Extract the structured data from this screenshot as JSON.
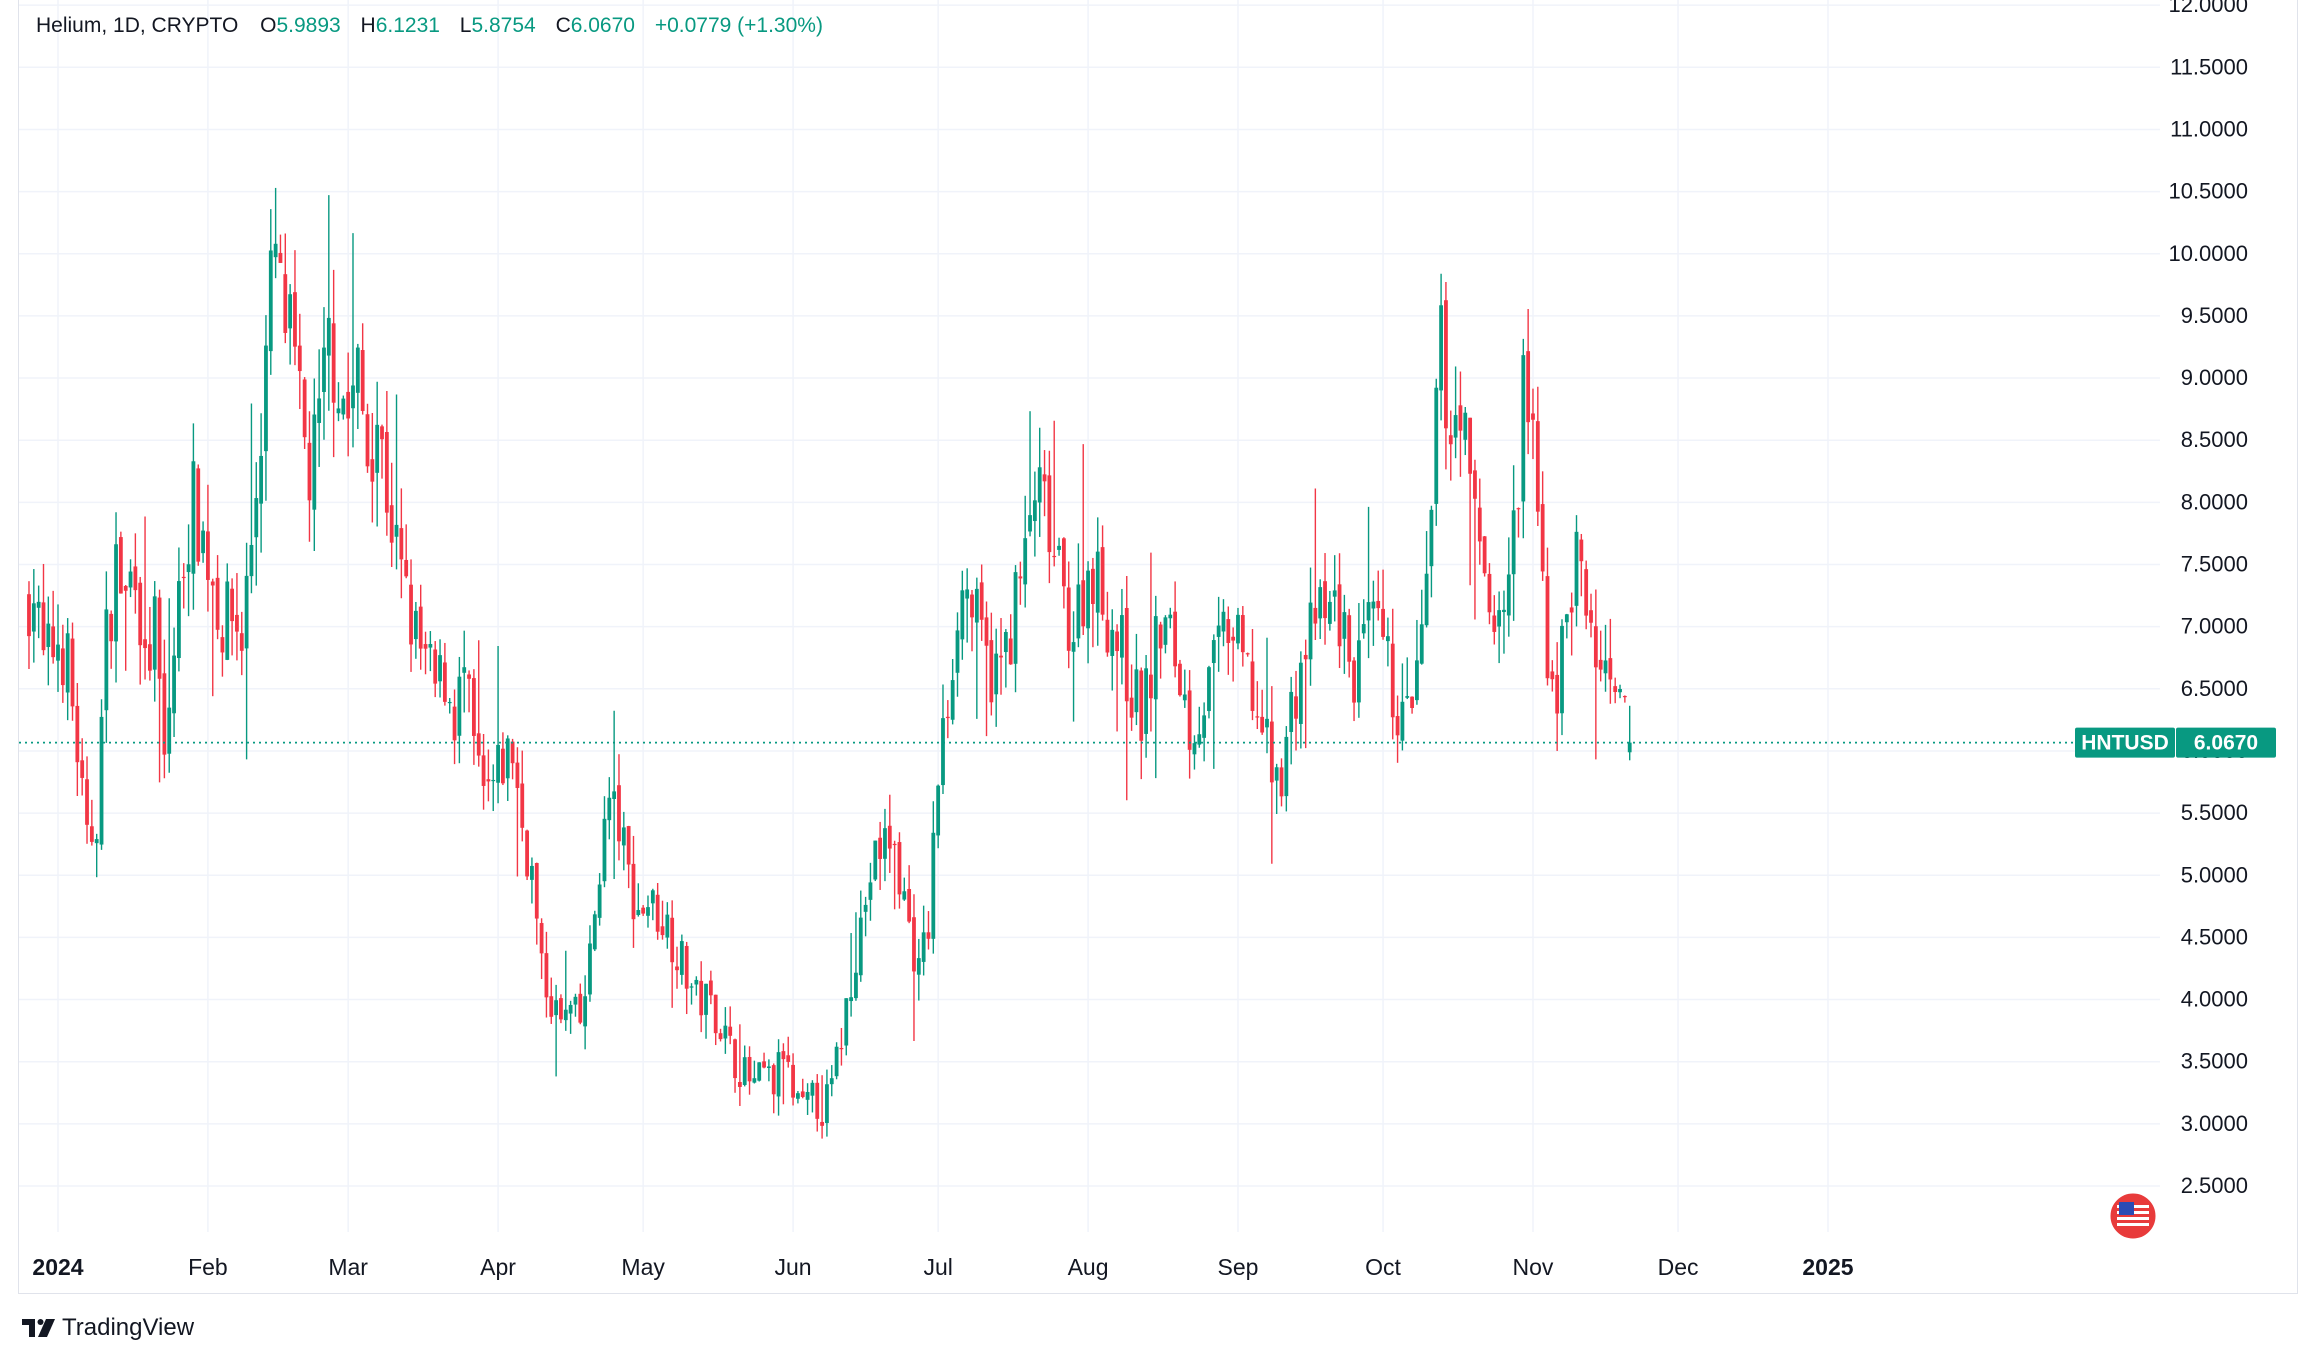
{
  "legend": {
    "symbol": "Helium, 1D, CRYPTO",
    "o_label": "O",
    "o_value": "5.9893",
    "h_label": "H",
    "h_value": "6.1231",
    "l_label": "L",
    "l_value": "5.8754",
    "c_label": "C",
    "c_value": "6.0670",
    "change": "+0.0779 (+1.30%)"
  },
  "branding": {
    "logo_text": "TradingView"
  },
  "colors": {
    "up": "#089981",
    "down": "#f23645",
    "grid": "#f0f3fa",
    "axis_text": "#131722"
  },
  "chart_data": {
    "type": "candlestick",
    "ticker": "HNTUSD",
    "last_price": 6.067,
    "last_price_label": "6.0670",
    "ylim": [
      2.2,
      12.0
    ],
    "y_ticks": [
      2.5,
      3.0,
      3.5,
      4.0,
      4.5,
      5.0,
      5.5,
      6.0,
      6.5,
      7.0,
      7.5,
      8.0,
      8.5,
      9.0,
      9.5,
      10.0,
      10.5,
      11.0,
      11.5,
      12.0
    ],
    "y_tick_labels": [
      "2.5000",
      "3.0000",
      "3.5000",
      "4.0000",
      "4.5000",
      "5.0000",
      "5.5000",
      "6.0000",
      "6.5000",
      "7.0000",
      "7.5000",
      "8.0000",
      "8.5000",
      "9.0000",
      "9.5000",
      "10.0000",
      "10.5000",
      "11.0000",
      "11.5000",
      "12.0000"
    ],
    "x_ticks": [
      {
        "day": 0,
        "label": "2024",
        "bold": true
      },
      {
        "day": 31,
        "label": "Feb",
        "bold": false
      },
      {
        "day": 60,
        "label": "Mar",
        "bold": false
      },
      {
        "day": 91,
        "label": "Apr",
        "bold": false
      },
      {
        "day": 121,
        "label": "May",
        "bold": false
      },
      {
        "day": 152,
        "label": "Jun",
        "bold": false
      },
      {
        "day": 182,
        "label": "Jul",
        "bold": false
      },
      {
        "day": 213,
        "label": "Aug",
        "bold": false
      },
      {
        "day": 244,
        "label": "Sep",
        "bold": false
      },
      {
        "day": 274,
        "label": "Oct",
        "bold": false
      },
      {
        "day": 305,
        "label": "Nov",
        "bold": false
      },
      {
        "day": 335,
        "label": "Dec",
        "bold": false
      },
      {
        "day": 366,
        "label": "2025",
        "bold": true
      }
    ],
    "close_path": [
      [
        -7,
        7.2
      ],
      [
        -5,
        7.3
      ],
      [
        -3,
        6.7
      ],
      [
        0,
        6.9
      ],
      [
        2,
        6.7
      ],
      [
        4,
        6.0
      ],
      [
        6,
        5.2
      ],
      [
        8,
        5.5
      ],
      [
        10,
        6.9
      ],
      [
        12,
        7.5
      ],
      [
        14,
        7.2
      ],
      [
        16,
        7.6
      ],
      [
        18,
        6.6
      ],
      [
        20,
        7.0
      ],
      [
        22,
        5.9
      ],
      [
        24,
        6.8
      ],
      [
        26,
        7.6
      ],
      [
        28,
        8.0
      ],
      [
        30,
        7.7
      ],
      [
        32,
        7.4
      ],
      [
        34,
        7.0
      ],
      [
        36,
        7.1
      ],
      [
        38,
        6.9
      ],
      [
        40,
        7.7
      ],
      [
        42,
        8.6
      ],
      [
        44,
        9.7
      ],
      [
        45,
        10.0
      ],
      [
        46,
        9.6
      ],
      [
        48,
        9.3
      ],
      [
        50,
        8.7
      ],
      [
        52,
        8.2
      ],
      [
        54,
        8.6
      ],
      [
        56,
        9.3
      ],
      [
        58,
        9.0
      ],
      [
        60,
        8.7
      ],
      [
        62,
        9.0
      ],
      [
        64,
        8.4
      ],
      [
        66,
        8.7
      ],
      [
        68,
        8.1
      ],
      [
        70,
        7.6
      ],
      [
        72,
        7.2
      ],
      [
        74,
        6.9
      ],
      [
        76,
        6.7
      ],
      [
        78,
        6.5
      ],
      [
        80,
        6.6
      ],
      [
        82,
        6.3
      ],
      [
        84,
        6.6
      ],
      [
        86,
        6.0
      ],
      [
        88,
        5.6
      ],
      [
        90,
        5.7
      ],
      [
        92,
        5.9
      ],
      [
        94,
        6.0
      ],
      [
        96,
        5.4
      ],
      [
        98,
        5.0
      ],
      [
        100,
        4.2
      ],
      [
        102,
        4.0
      ],
      [
        104,
        3.8
      ],
      [
        106,
        3.9
      ],
      [
        108,
        3.8
      ],
      [
        110,
        4.3
      ],
      [
        112,
        5.1
      ],
      [
        114,
        5.6
      ],
      [
        116,
        5.4
      ],
      [
        118,
        5.0
      ],
      [
        120,
        4.7
      ],
      [
        122,
        4.8
      ],
      [
        124,
        4.7
      ],
      [
        126,
        4.6
      ],
      [
        128,
        4.4
      ],
      [
        130,
        4.2
      ],
      [
        132,
        4.0
      ],
      [
        134,
        4.0
      ],
      [
        136,
        3.9
      ],
      [
        138,
        3.7
      ],
      [
        140,
        3.5
      ],
      [
        142,
        3.4
      ],
      [
        144,
        3.3
      ],
      [
        146,
        3.4
      ],
      [
        148,
        3.3
      ],
      [
        150,
        3.6
      ],
      [
        152,
        3.2
      ],
      [
        154,
        3.1
      ],
      [
        156,
        3.2
      ],
      [
        158,
        3.1
      ],
      [
        160,
        3.3
      ],
      [
        162,
        3.7
      ],
      [
        164,
        4.2
      ],
      [
        166,
        4.6
      ],
      [
        168,
        5.0
      ],
      [
        170,
        5.2
      ],
      [
        172,
        5.3
      ],
      [
        174,
        5.0
      ],
      [
        176,
        4.6
      ],
      [
        178,
        4.2
      ],
      [
        180,
        4.6
      ],
      [
        182,
        5.8
      ],
      [
        184,
        6.4
      ],
      [
        186,
        7.2
      ],
      [
        188,
        7.3
      ],
      [
        190,
        7.0
      ],
      [
        192,
        6.7
      ],
      [
        194,
        6.6
      ],
      [
        196,
        6.8
      ],
      [
        198,
        7.2
      ],
      [
        200,
        7.5
      ],
      [
        202,
        8.1
      ],
      [
        204,
        7.9
      ],
      [
        206,
        7.5
      ],
      [
        208,
        7.2
      ],
      [
        210,
        7.0
      ],
      [
        212,
        7.3
      ],
      [
        214,
        7.5
      ],
      [
        216,
        7.2
      ],
      [
        218,
        7.0
      ],
      [
        220,
        6.8
      ],
      [
        222,
        6.5
      ],
      [
        224,
        6.3
      ],
      [
        226,
        6.6
      ],
      [
        228,
        7.0
      ],
      [
        230,
        6.9
      ],
      [
        232,
        6.6
      ],
      [
        234,
        6.2
      ],
      [
        236,
        6.3
      ],
      [
        238,
        6.5
      ],
      [
        240,
        6.8
      ],
      [
        242,
        7.0
      ],
      [
        244,
        6.8
      ],
      [
        246,
        6.6
      ],
      [
        248,
        6.3
      ],
      [
        250,
        6.0
      ],
      [
        252,
        5.7
      ],
      [
        254,
        6.1
      ],
      [
        256,
        6.5
      ],
      [
        258,
        6.8
      ],
      [
        260,
        7.1
      ],
      [
        262,
        7.0
      ],
      [
        264,
        7.2
      ],
      [
        266,
        6.9
      ],
      [
        268,
        6.6
      ],
      [
        270,
        6.8
      ],
      [
        272,
        7.0
      ],
      [
        274,
        6.8
      ],
      [
        276,
        6.5
      ],
      [
        278,
        6.2
      ],
      [
        280,
        6.4
      ],
      [
        282,
        6.8
      ],
      [
        284,
        7.7
      ],
      [
        285,
        8.8
      ],
      [
        286,
        9.2
      ],
      [
        288,
        8.6
      ],
      [
        290,
        8.9
      ],
      [
        292,
        8.0
      ],
      [
        294,
        7.7
      ],
      [
        296,
        7.2
      ],
      [
        298,
        7.0
      ],
      [
        300,
        7.4
      ],
      [
        302,
        8.0
      ],
      [
        303,
        9.0
      ],
      [
        304,
        8.8
      ],
      [
        306,
        7.8
      ],
      [
        308,
        6.8
      ],
      [
        310,
        6.5
      ],
      [
        312,
        7.1
      ],
      [
        314,
        7.6
      ],
      [
        316,
        7.1
      ],
      [
        318,
        6.8
      ],
      [
        320,
        6.5
      ],
      [
        322,
        6.3
      ],
      [
        324,
        6.3
      ],
      [
        325,
        6.07
      ]
    ],
    "price_scale_note": "x positions are calendar days from 2024-01-01; chart spans ~late Dec 2023 to 31 Dec 2024"
  }
}
